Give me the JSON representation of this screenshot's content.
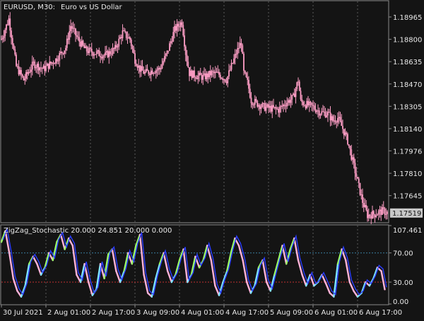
{
  "window": {
    "symbol_label": "EURUSD, M30:",
    "description": "Euro vs US Dollar"
  },
  "indicator": {
    "label": "ZigZag_Stochastic 20.000 24.851 20.000 0.000"
  },
  "colors": {
    "background": "#141414",
    "frame": "#8a8a8a",
    "grid": "#5a5a5a",
    "candle": "#ff9fc6",
    "stoch_line": "#2a3cff",
    "stoch_fill_pink": "#ffb3d9",
    "stoch_fill_green": "#9dff66",
    "stoch_fill_cyan": "#7fe6ff",
    "level_high": "#3a7fa0",
    "level_low": "#c03030",
    "price_tag_bg": "#c8c8c8",
    "price_tag_text": "#141414",
    "text": "#e8e8e8"
  },
  "chart_data": [
    {
      "type": "candlestick",
      "title": "EURUSD, M30: Euro vs US Dollar",
      "ylim": [
        1.1745,
        1.1908
      ],
      "y_ticks": [
        "1.18965",
        "1.18800",
        "1.18635",
        "1.18470",
        "1.18305",
        "1.18140",
        "1.17976",
        "1.17810",
        "1.17645"
      ],
      "current_price": "1.17519",
      "grid": "vertical dotted",
      "close_path": [
        [
          0,
          1.188
        ],
        [
          3,
          1.1895
        ],
        [
          6,
          1.186
        ],
        [
          9,
          1.185
        ],
        [
          13,
          1.1862
        ],
        [
          17,
          1.1858
        ],
        [
          22,
          1.1865
        ],
        [
          26,
          1.1874
        ],
        [
          28,
          1.189
        ],
        [
          31,
          1.188
        ],
        [
          34,
          1.1872
        ],
        [
          38,
          1.187
        ],
        [
          42,
          1.1868
        ],
        [
          46,
          1.1873
        ],
        [
          49,
          1.1885
        ],
        [
          52,
          1.188
        ],
        [
          54,
          1.1865
        ],
        [
          56,
          1.1858
        ],
        [
          58,
          1.1855
        ],
        [
          61,
          1.1857
        ],
        [
          64,
          1.1858
        ],
        [
          67,
          1.187
        ],
        [
          70,
          1.1887
        ],
        [
          73,
          1.1893
        ],
        [
          74.5,
          1.187
        ],
        [
          76,
          1.1855
        ],
        [
          79,
          1.1853
        ],
        [
          82,
          1.1852
        ],
        [
          85,
          1.1855
        ],
        [
          88,
          1.1854
        ],
        [
          91,
          1.185
        ],
        [
          93,
          1.186
        ],
        [
          95,
          1.187
        ],
        [
          97,
          1.1878
        ],
        [
          98,
          1.1855
        ],
        [
          99.5,
          1.1848
        ],
        [
          101,
          1.1835
        ],
        [
          103,
          1.1833
        ],
        [
          106,
          1.183
        ],
        [
          109,
          1.1829
        ],
        [
          112,
          1.1828
        ],
        [
          115,
          1.1833
        ],
        [
          118,
          1.1837
        ],
        [
          120,
          1.185
        ],
        [
          121,
          1.1834
        ],
        [
          123,
          1.1832
        ],
        [
          126,
          1.183
        ],
        [
          129,
          1.1826
        ],
        [
          132,
          1.1825
        ],
        [
          134,
          1.182
        ],
        [
          136,
          1.1822
        ],
        [
          138,
          1.1814
        ],
        [
          140,
          1.1805
        ],
        [
          142,
          1.179
        ],
        [
          144,
          1.1775
        ],
        [
          146,
          1.176
        ],
        [
          148,
          1.175
        ],
        [
          151,
          1.1751
        ],
        [
          154,
          1.1753
        ],
        [
          156,
          1.1752
        ]
      ]
    },
    {
      "type": "line",
      "title": "ZigZag_Stochastic 20.000 24.851 20.000 0.000",
      "ylim": [
        0,
        107.461
      ],
      "y_ticks": [
        "107.461",
        "70.00",
        "30.00",
        "0.00"
      ],
      "levels": [
        70,
        30
      ],
      "x_tick_labels": [
        "30 Jul 2021",
        "2 Aug 01:00",
        "2 Aug 17:00",
        "3 Aug 09:00",
        "4 Aug 01:00",
        "4 Aug 17:00",
        "5 Aug 09:00",
        "6 Aug 01:00",
        "6 Aug 17:00"
      ],
      "x_tick_positions": [
        0,
        18,
        36,
        54,
        72,
        90,
        108,
        126,
        144
      ],
      "x_range": [
        0,
        156
      ],
      "stoch_points": [
        [
          0,
          85
        ],
        [
          1.6,
          100
        ],
        [
          3.2,
          70
        ],
        [
          4.8,
          35
        ],
        [
          6.4,
          18
        ],
        [
          8,
          10
        ],
        [
          9.6,
          25
        ],
        [
          11.2,
          55
        ],
        [
          12.8,
          65
        ],
        [
          14.4,
          55
        ],
        [
          16,
          40
        ],
        [
          17.6,
          50
        ],
        [
          19.2,
          70
        ],
        [
          20.8,
          60
        ],
        [
          22.4,
          85
        ],
        [
          24,
          95
        ],
        [
          25.6,
          75
        ],
        [
          27.2,
          90
        ],
        [
          28.8,
          80
        ],
        [
          30.4,
          40
        ],
        [
          32,
          30
        ],
        [
          33.6,
          55
        ],
        [
          35.2,
          30
        ],
        [
          36.8,
          12
        ],
        [
          38.4,
          20
        ],
        [
          40,
          55
        ],
        [
          41.6,
          35
        ],
        [
          43.2,
          68
        ],
        [
          44.8,
          75
        ],
        [
          46.4,
          45
        ],
        [
          48,
          30
        ],
        [
          49.6,
          45
        ],
        [
          51.2,
          70
        ],
        [
          52.8,
          55
        ],
        [
          54.4,
          80
        ],
        [
          56,
          95
        ],
        [
          57.6,
          40
        ],
        [
          59.2,
          15
        ],
        [
          60.8,
          10
        ],
        [
          62.4,
          35
        ],
        [
          64,
          55
        ],
        [
          65.6,
          70
        ],
        [
          67.2,
          45
        ],
        [
          68.8,
          30
        ],
        [
          70.4,
          40
        ],
        [
          72,
          60
        ],
        [
          73.6,
          75
        ],
        [
          75.2,
          30
        ],
        [
          76.8,
          40
        ],
        [
          78.4,
          65
        ],
        [
          80,
          50
        ],
        [
          81.6,
          60
        ],
        [
          83.2,
          80
        ],
        [
          84.8,
          60
        ],
        [
          86.4,
          25
        ],
        [
          88,
          12
        ],
        [
          89.6,
          30
        ],
        [
          91.2,
          45
        ],
        [
          92.8,
          70
        ],
        [
          94.4,
          90
        ],
        [
          96,
          80
        ],
        [
          97.6,
          60
        ],
        [
          99.2,
          30
        ],
        [
          100.8,
          15
        ],
        [
          102.4,
          25
        ],
        [
          104,
          50
        ],
        [
          105.6,
          60
        ],
        [
          107.2,
          30
        ],
        [
          108.8,
          18
        ],
        [
          110.4,
          40
        ],
        [
          112,
          60
        ],
        [
          113.6,
          80
        ],
        [
          115.2,
          55
        ],
        [
          116.8,
          75
        ],
        [
          118.4,
          90
        ],
        [
          120,
          60
        ],
        [
          121.6,
          40
        ],
        [
          123.2,
          25
        ],
        [
          124.8,
          40
        ],
        [
          126.4,
          25
        ],
        [
          128,
          30
        ],
        [
          129.6,
          40
        ],
        [
          131.2,
          28
        ],
        [
          132.8,
          15
        ],
        [
          134.4,
          10
        ],
        [
          136,
          55
        ],
        [
          137.6,
          75
        ],
        [
          139.2,
          60
        ],
        [
          140.8,
          30
        ],
        [
          142.4,
          18
        ],
        [
          144,
          10
        ],
        [
          145.6,
          15
        ],
        [
          147.2,
          30
        ],
        [
          148.8,
          25
        ],
        [
          150.4,
          35
        ],
        [
          152,
          50
        ],
        [
          153.6,
          45
        ],
        [
          155,
          20
        ]
      ]
    }
  ]
}
